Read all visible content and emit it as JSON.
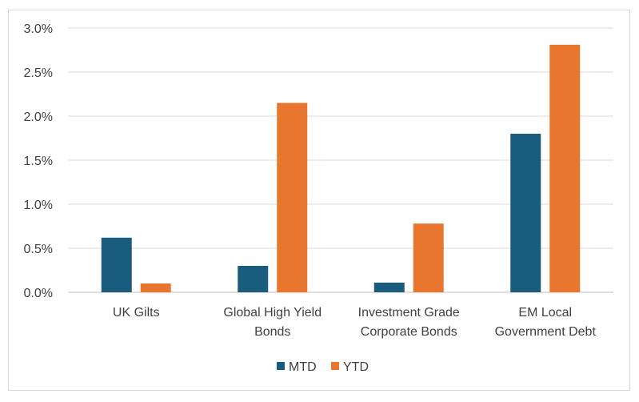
{
  "chart_data": {
    "type": "bar",
    "categories": [
      [
        "UK Gilts"
      ],
      [
        "Global High Yield",
        "Bonds"
      ],
      [
        "Investment Grade",
        "Corporate Bonds"
      ],
      [
        "EM Local",
        "Government Debt"
      ]
    ],
    "series": [
      {
        "name": "MTD",
        "color": "#1a5c7e",
        "values": [
          0.62,
          0.3,
          0.11,
          1.8
        ]
      },
      {
        "name": "YTD",
        "color": "#e8762f",
        "values": [
          0.1,
          2.15,
          0.78,
          2.81
        ]
      }
    ],
    "ylim": [
      0,
      3.0
    ],
    "yticks": [
      0,
      0.5,
      1.0,
      1.5,
      2.0,
      2.5,
      3.0
    ],
    "ytick_labels": [
      "0.0%",
      "0.5%",
      "1.0%",
      "1.5%",
      "2.0%",
      "2.5%",
      "3.0%"
    ],
    "unit": "%",
    "grid": true,
    "legend": "bottom-center",
    "title": "",
    "xlabel": "",
    "ylabel": ""
  }
}
